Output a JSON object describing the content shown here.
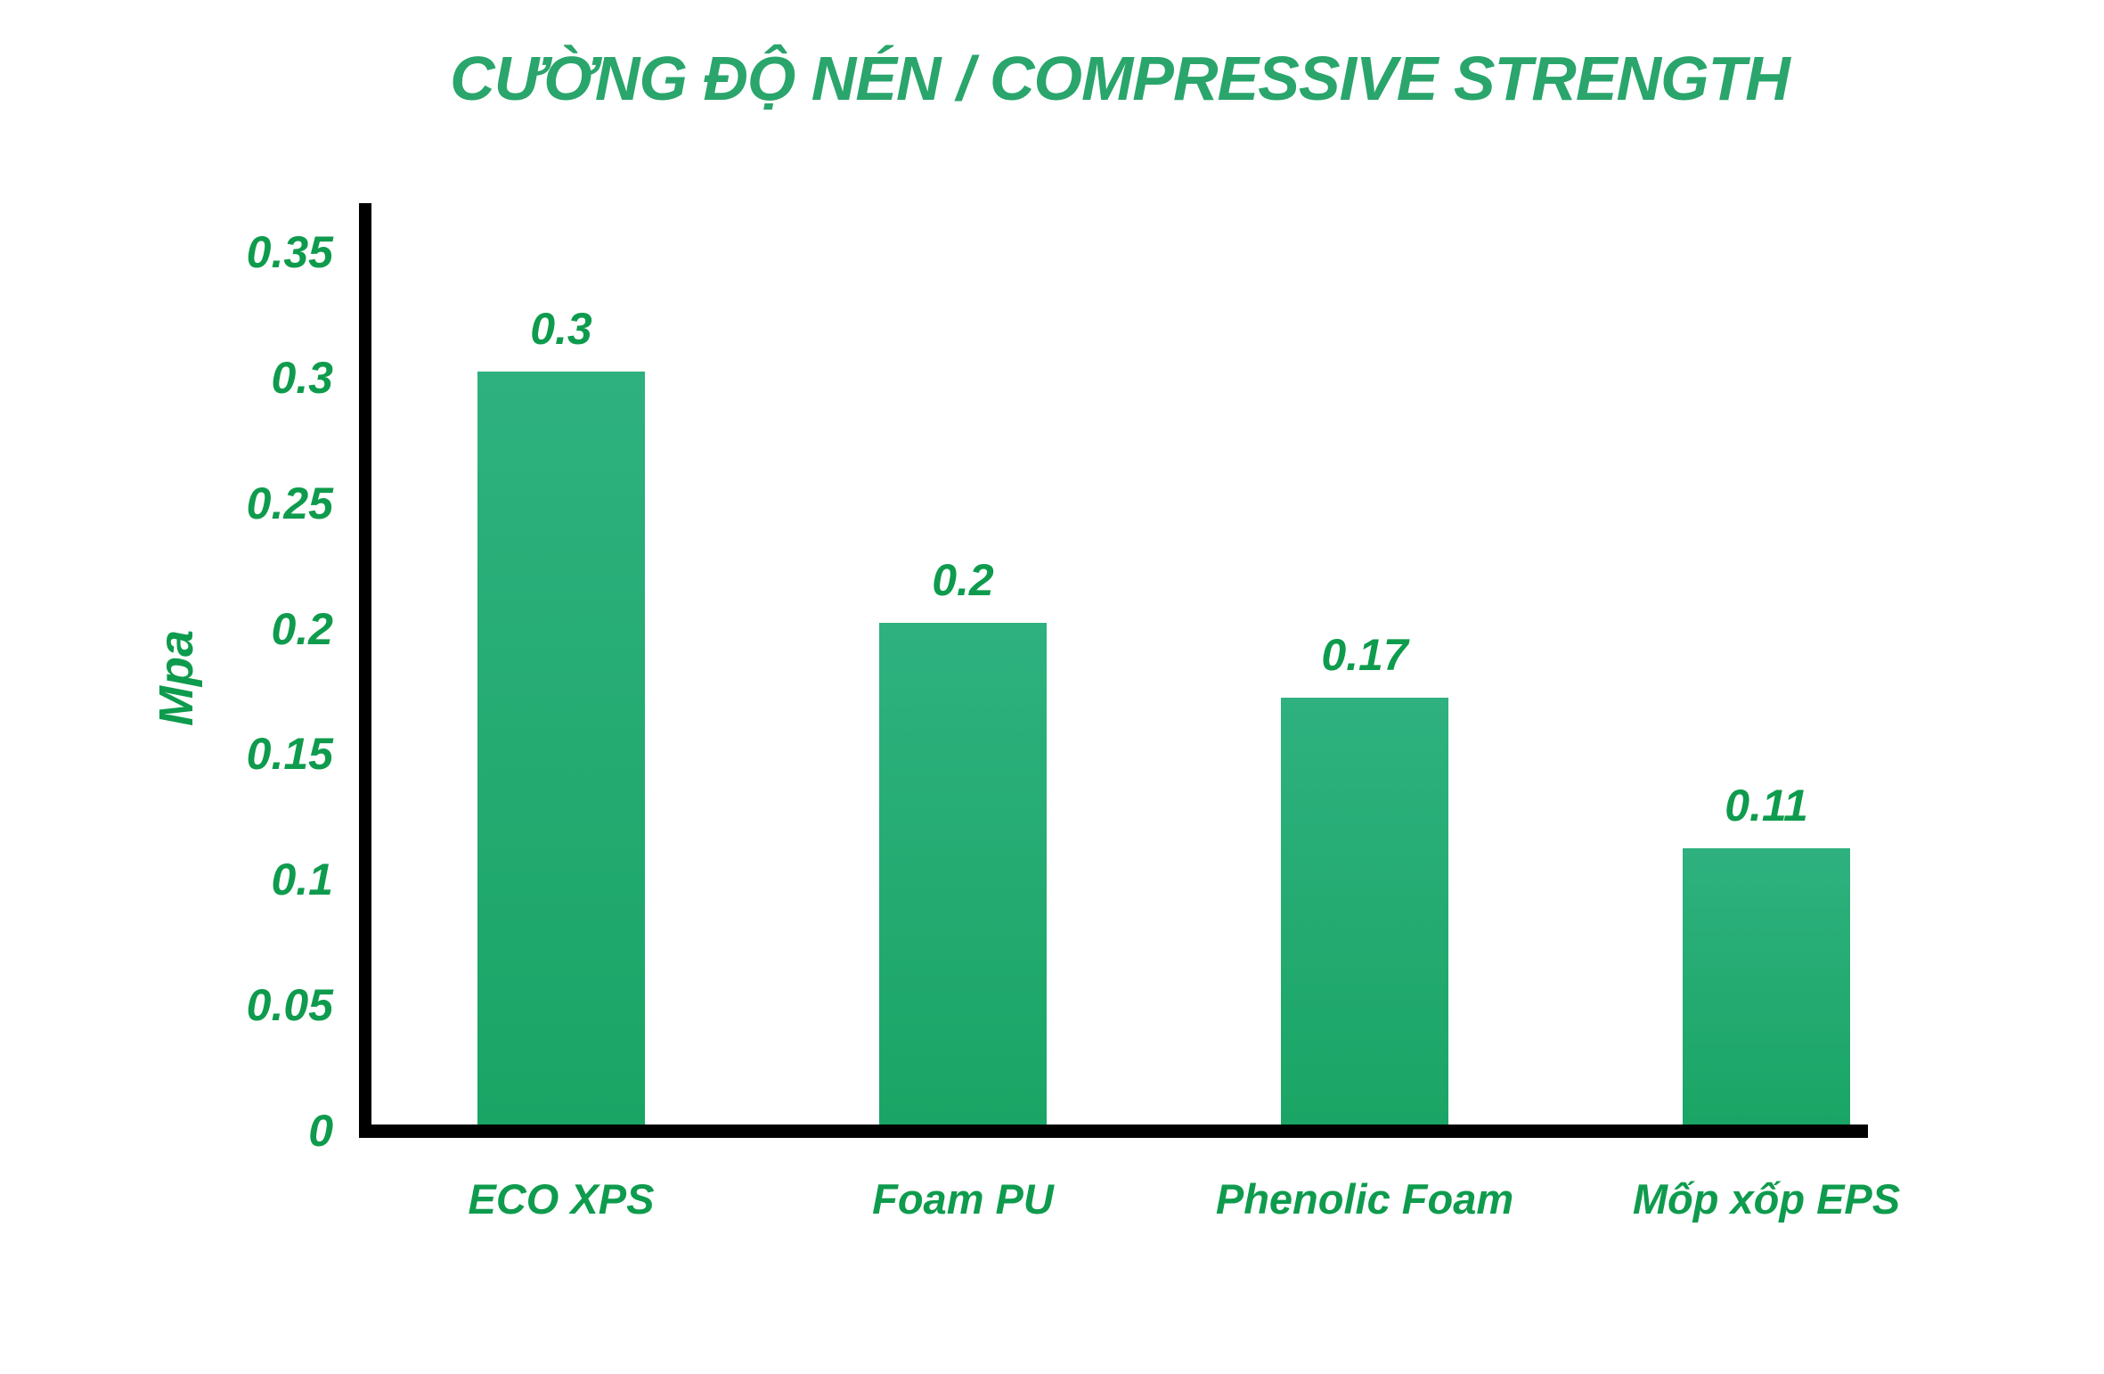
{
  "title": "CƯỜNG ĐỘ NÉN / COMPRESSIVE STRENGTH",
  "colors": {
    "title_green": "#2AA56C",
    "label_green": "#0E9B4D",
    "bar_gradient_top": "#2EB17F",
    "bar_gradient_bottom": "#1AA565",
    "axis_black": "#000000",
    "background": "#FFFFFF"
  },
  "chart_data": {
    "type": "bar",
    "title": "CƯỜNG ĐỘ NÉN / COMPRESSIVE STRENGTH",
    "xlabel": "",
    "ylabel": "Mpa",
    "categories": [
      "ECO XPS",
      "Foam PU",
      "Phenolic Foam",
      "Mốp xốp EPS"
    ],
    "values": [
      0.3,
      0.2,
      0.17,
      0.11
    ],
    "value_labels": [
      "0.3",
      "0.2",
      "0.17",
      "0.11"
    ],
    "ylim": [
      0,
      0.35
    ],
    "yticks": [
      0,
      0.05,
      0.1,
      0.15,
      0.2,
      0.25,
      0.3,
      0.35
    ],
    "ytick_labels": [
      "0",
      "0.05",
      "0.1",
      "0.15",
      "0.2",
      "0.25",
      "0.3",
      "0.35"
    ],
    "grid": false,
    "legend": false,
    "bar_color": "green gradient",
    "orientation": "vertical"
  }
}
